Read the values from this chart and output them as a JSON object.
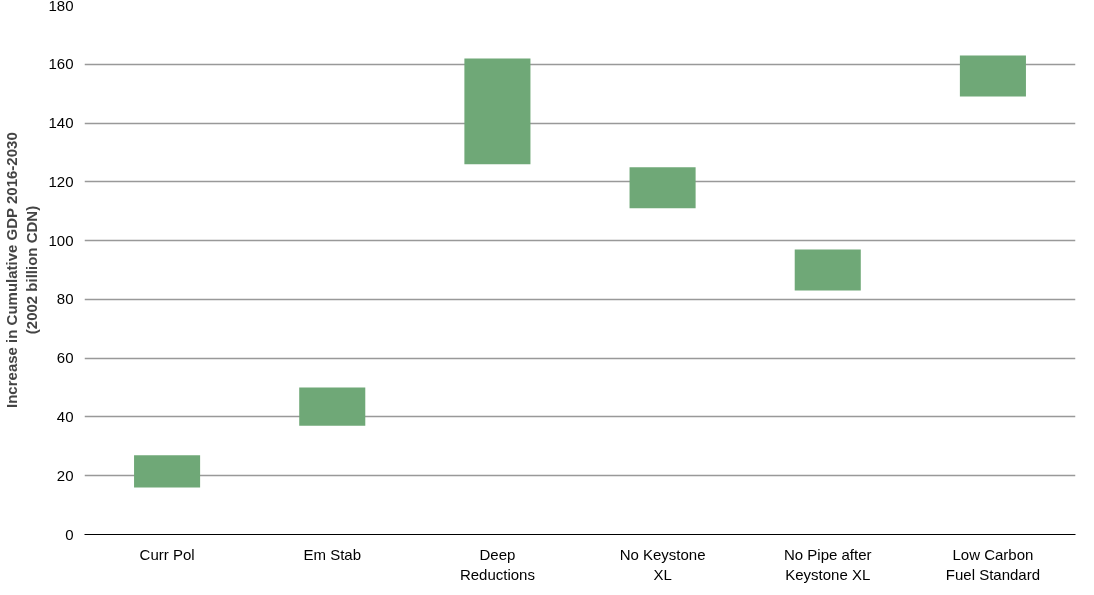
{
  "chart_data": {
    "type": "bar",
    "ylabel": "Increase in Cumulative GDP 2016-2030\n(2002 billion CDN)",
    "categories": [
      "Curr Pol",
      "Em Stab",
      "Deep Reductions",
      "No Keystone XL",
      "No Pipe after Keystone XL",
      "Low Carbon Fuel Standard"
    ],
    "base": [
      16,
      37,
      126,
      111,
      83,
      149
    ],
    "values": [
      11,
      13,
      36,
      14,
      14,
      14
    ],
    "color": "#6fa877",
    "ylim": [
      0,
      180
    ],
    "yticks": [
      0,
      20,
      40,
      60,
      80,
      100,
      120,
      140,
      160,
      180
    ],
    "grid": "y"
  }
}
